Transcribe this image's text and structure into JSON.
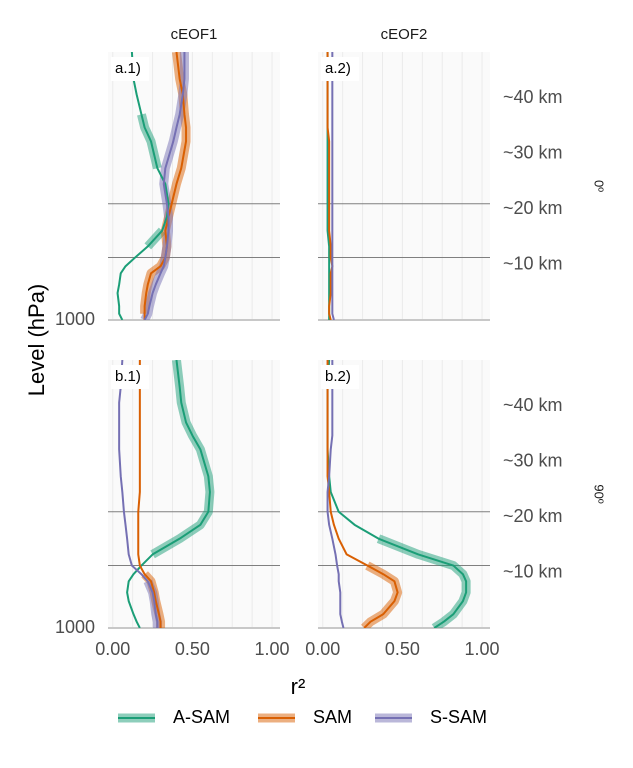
{
  "chart_data": [
    {
      "type": "line",
      "panel_label": "a.1)",
      "column": "cEOF1",
      "y": [
        1000,
        850,
        700,
        500,
        400,
        300,
        250,
        200,
        150,
        100,
        70,
        50,
        30,
        20,
        10,
        7,
        5,
        3,
        2,
        1
      ],
      "ylim": [
        1000,
        1
      ],
      "ylog": true,
      "yticks": [
        {
          "value": 1000,
          "label": "1000"
        }
      ],
      "xlim": [
        -0.03,
        1.05
      ],
      "xgrid": [
        0,
        0.125,
        0.25,
        0.375,
        0.5,
        0.625,
        0.75,
        0.875,
        1
      ],
      "hlines": [
        50,
        200
      ],
      "series": [
        {
          "name": "A-SAM",
          "color": "#1b9e77",
          "values": [
            0.06,
            0.04,
            0.04,
            0.03,
            0.04,
            0.05,
            0.08,
            0.14,
            0.22,
            0.31,
            0.34,
            0.35,
            0.33,
            0.28,
            0.24,
            0.2,
            0.18,
            0.15,
            0.13,
            0.12
          ],
          "bold_values": [
            null,
            null,
            null,
            null,
            null,
            null,
            null,
            null,
            0.22,
            0.31,
            null,
            null,
            null,
            0.28,
            0.24,
            0.2,
            0.18,
            null,
            null,
            null
          ]
        },
        {
          "name": "SAM",
          "color": "#d95f02",
          "values": [
            0.2,
            0.2,
            0.2,
            0.21,
            0.22,
            0.24,
            0.3,
            0.33,
            0.34,
            0.33,
            0.35,
            0.37,
            0.4,
            0.43,
            0.46,
            0.46,
            0.45,
            0.44,
            0.42,
            0.4
          ],
          "bold_values": [
            null,
            0.2,
            0.2,
            0.21,
            0.22,
            0.24,
            0.3,
            0.33,
            0.34,
            0.33,
            0.35,
            0.37,
            0.4,
            0.43,
            0.46,
            0.46,
            0.45,
            0.44,
            0.42,
            0.4
          ]
        },
        {
          "name": "S-SAM",
          "color": "#7570b3",
          "values": [
            0.2,
            0.22,
            0.23,
            0.25,
            0.27,
            0.3,
            0.32,
            0.33,
            0.34,
            0.35,
            0.35,
            0.34,
            0.32,
            0.33,
            0.38,
            0.4,
            0.42,
            0.44,
            0.45,
            0.45
          ],
          "bold_values": [
            0.2,
            0.22,
            0.23,
            0.25,
            0.27,
            0.3,
            0.32,
            0.33,
            0.34,
            0.35,
            0.35,
            0.34,
            0.32,
            0.33,
            0.38,
            0.4,
            0.42,
            0.44,
            0.45,
            0.45
          ]
        }
      ]
    },
    {
      "type": "line",
      "panel_label": "a.2)",
      "column": "cEOF2",
      "row": "0º",
      "y": [
        1000,
        850,
        700,
        500,
        400,
        300,
        250,
        200,
        150,
        100,
        70,
        50,
        30,
        20,
        10,
        7,
        5,
        3,
        2,
        1
      ],
      "ylim": [
        1000,
        1
      ],
      "ylog": true,
      "y2lim": [
        0,
        48.3
      ],
      "y2ticks": [
        {
          "value": 10,
          "label": "~10 km"
        },
        {
          "value": 20,
          "label": "~20 km"
        },
        {
          "value": 30,
          "label": "~30 km"
        },
        {
          "value": 40,
          "label": "~40 km"
        }
      ],
      "xlim": [
        -0.03,
        1.05
      ],
      "xgrid": [
        0,
        0.125,
        0.25,
        0.375,
        0.5,
        0.625,
        0.75,
        0.875,
        1
      ],
      "hlines": [
        50,
        200
      ],
      "series": [
        {
          "name": "A-SAM",
          "color": "#1b9e77",
          "values": [
            0.04,
            0.04,
            0.04,
            0.04,
            0.04,
            0.04,
            0.04,
            0.04,
            0.04,
            0.03,
            0.03,
            0.03,
            0.03,
            0.03,
            0.03,
            0.03,
            0.03,
            0.03,
            0.03,
            0.03
          ]
        },
        {
          "name": "SAM",
          "color": "#d95f02",
          "values": [
            0.05,
            0.04,
            0.04,
            0.05,
            0.05,
            0.05,
            0.06,
            0.05,
            0.05,
            0.04,
            0.04,
            0.04,
            0.04,
            0.04,
            0.04,
            0.03,
            0.03,
            0.03,
            0.03,
            0.03
          ]
        },
        {
          "name": "S-SAM",
          "color": "#7570b3",
          "values": [
            0.07,
            0.06,
            0.06,
            0.06,
            0.06,
            0.06,
            0.06,
            0.06,
            0.06,
            0.06,
            0.06,
            0.06,
            0.06,
            0.06,
            0.06,
            0.06,
            0.06,
            0.06,
            0.06,
            0.06
          ]
        }
      ]
    },
    {
      "type": "line",
      "panel_label": "b.1)",
      "y": [
        1000,
        850,
        700,
        500,
        400,
        300,
        250,
        200,
        150,
        100,
        70,
        50,
        30,
        20,
        10,
        7,
        5,
        3,
        2,
        1
      ],
      "ylim": [
        1000,
        1
      ],
      "ylog": true,
      "yticks": [
        {
          "value": 1000,
          "label": "1000"
        }
      ],
      "xlim": [
        -0.03,
        1.05
      ],
      "xticks": [
        {
          "value": 0,
          "label": "0.00"
        },
        {
          "value": 0.5,
          "label": "0.50"
        },
        {
          "value": 1,
          "label": "1.00"
        }
      ],
      "xgrid": [
        0,
        0.125,
        0.25,
        0.375,
        0.5,
        0.625,
        0.75,
        0.875,
        1
      ],
      "hlines": [
        50,
        200
      ],
      "series": [
        {
          "name": "A-SAM",
          "color": "#1b9e77",
          "values": [
            0.17,
            0.15,
            0.13,
            0.1,
            0.09,
            0.1,
            0.13,
            0.18,
            0.25,
            0.42,
            0.55,
            0.6,
            0.61,
            0.6,
            0.55,
            0.5,
            0.46,
            0.43,
            0.42,
            0.4
          ],
          "bold_values": [
            null,
            null,
            null,
            null,
            null,
            null,
            null,
            null,
            0.25,
            0.42,
            0.55,
            0.6,
            0.61,
            0.6,
            0.55,
            0.5,
            0.46,
            0.43,
            0.42,
            0.4
          ]
        },
        {
          "name": "SAM",
          "color": "#d95f02",
          "values": [
            0.3,
            0.3,
            0.29,
            0.27,
            0.26,
            0.24,
            0.2,
            0.17,
            0.16,
            0.16,
            0.16,
            0.16,
            0.17,
            0.17,
            0.17,
            0.17,
            0.17,
            0.17,
            0.17,
            0.17
          ],
          "bold_values": [
            0.3,
            0.3,
            0.29,
            0.27,
            0.26,
            0.24,
            0.2,
            null,
            null,
            null,
            null,
            null,
            null,
            null,
            null,
            null,
            null,
            null,
            null,
            null
          ]
        },
        {
          "name": "S-SAM",
          "color": "#7570b3",
          "values": [
            0.28,
            0.28,
            0.27,
            0.26,
            0.25,
            0.22,
            0.18,
            0.12,
            0.1,
            0.09,
            0.08,
            0.07,
            0.06,
            0.05,
            0.04,
            0.04,
            0.04,
            0.04,
            0.05,
            0.06
          ],
          "bold_values": [
            0.28,
            0.28,
            0.27,
            0.26,
            0.25,
            0.22,
            null,
            null,
            null,
            null,
            null,
            null,
            null,
            null,
            null,
            null,
            null,
            null,
            null,
            null
          ]
        }
      ]
    },
    {
      "type": "line",
      "panel_label": "b.2)",
      "row": "90º",
      "y": [
        1000,
        850,
        700,
        500,
        400,
        300,
        250,
        200,
        150,
        100,
        70,
        50,
        30,
        20,
        10,
        7,
        5,
        3,
        2,
        1
      ],
      "ylim": [
        1000,
        1
      ],
      "ylog": true,
      "y2lim": [
        0,
        48.3
      ],
      "y2ticks": [
        {
          "value": 10,
          "label": "~10 km"
        },
        {
          "value": 20,
          "label": "~20 km"
        },
        {
          "value": 30,
          "label": "~30 km"
        },
        {
          "value": 40,
          "label": "~40 km"
        }
      ],
      "xlim": [
        -0.03,
        1.05
      ],
      "xticks": [
        {
          "value": 0,
          "label": "0.00"
        },
        {
          "value": 0.5,
          "label": "0.50"
        },
        {
          "value": 1,
          "label": "1.00"
        }
      ],
      "xgrid": [
        0,
        0.125,
        0.25,
        0.375,
        0.5,
        0.625,
        0.75,
        0.875,
        1
      ],
      "hlines": [
        50,
        200
      ],
      "series": [
        {
          "name": "A-SAM",
          "color": "#1b9e77",
          "values": [
            0.7,
            0.76,
            0.82,
            0.88,
            0.9,
            0.9,
            0.88,
            0.82,
            0.6,
            0.35,
            0.2,
            0.1,
            0.05,
            0.04,
            0.03,
            0.03,
            0.03,
            0.03,
            0.03,
            0.04
          ],
          "bold_values": [
            0.7,
            0.76,
            0.82,
            0.88,
            0.9,
            0.9,
            0.88,
            0.82,
            0.6,
            0.35,
            null,
            null,
            null,
            null,
            null,
            null,
            null,
            null,
            null,
            null
          ]
        },
        {
          "name": "SAM",
          "color": "#d95f02",
          "values": [
            0.26,
            0.3,
            0.38,
            0.45,
            0.47,
            0.45,
            0.38,
            0.28,
            0.15,
            0.1,
            0.07,
            0.05,
            0.04,
            0.03,
            0.03,
            0.03,
            0.03,
            0.03,
            0.03,
            0.03
          ],
          "bold_values": [
            0.26,
            0.3,
            0.38,
            0.45,
            0.47,
            0.45,
            0.38,
            0.28,
            null,
            null,
            null,
            null,
            null,
            null,
            null,
            null,
            null,
            null,
            null,
            null
          ]
        },
        {
          "name": "S-SAM",
          "color": "#7570b3",
          "values": [
            0.13,
            0.12,
            0.11,
            0.11,
            0.11,
            0.1,
            0.1,
            0.09,
            0.08,
            0.06,
            0.04,
            0.03,
            0.03,
            0.04,
            0.05,
            0.06,
            0.06,
            0.06,
            0.06,
            0.06
          ]
        }
      ]
    }
  ],
  "x_label": "r²",
  "y_label": "Level (hPa)"
}
